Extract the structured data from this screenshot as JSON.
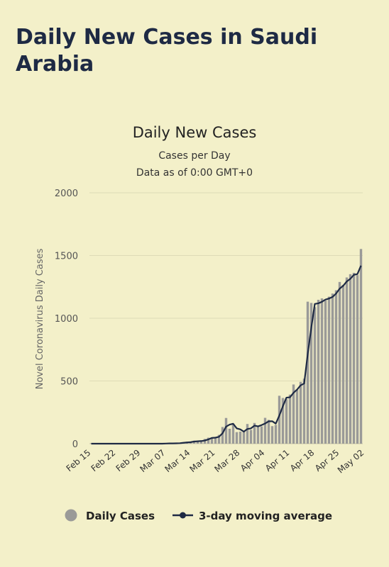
{
  "header": {
    "title": "Daily New Cases in Saudi Arabia"
  },
  "chart_data": {
    "type": "bar",
    "title": "Daily New Cases",
    "subtitle": "Cases per Day",
    "subtitle2": "Data as of 0:00 GMT+0",
    "xlabel": "",
    "ylabel": "Novel Coronavirus Daily Cases",
    "ylim": [
      0,
      2000
    ],
    "yticks": [
      0,
      500,
      1000,
      1500,
      2000
    ],
    "grid": true,
    "legend_position": "bottom",
    "xtick_labels": [
      "Feb 15",
      "Feb 22",
      "Feb 29",
      "Mar 07",
      "Mar 14",
      "Mar 21",
      "Mar 28",
      "Apr 04",
      "Apr 11",
      "Apr 18",
      "Apr 25",
      "May 02"
    ],
    "start_label": "Feb 15",
    "bar_color": "#9a9a98",
    "line_color": "#1e2a44",
    "series": [
      {
        "name": "Daily Cases",
        "kind": "bar",
        "values": [
          0,
          0,
          0,
          0,
          0,
          0,
          0,
          0,
          0,
          0,
          0,
          0,
          0,
          0,
          0,
          0,
          1,
          0,
          0,
          0,
          0,
          2,
          3,
          2,
          5,
          6,
          10,
          15,
          11,
          24,
          21,
          17,
          38,
          48,
          51,
          45,
          70,
          133,
          205,
          119,
          154,
          92,
          96,
          99,
          157,
          110,
          165,
          140,
          138,
          206,
          190,
          140,
          150,
          382,
          364,
          355,
          391,
          472,
          429,
          493,
          518,
          1132,
          1122,
          1088,
          1147,
          1158,
          1141,
          1172,
          1197,
          1223,
          1289,
          1266,
          1325,
          1351,
          1362,
          1344,
          1552
        ]
      },
      {
        "name": "3-day moving average",
        "kind": "line",
        "values": [
          0,
          0,
          0,
          0,
          0,
          0,
          0,
          0,
          0,
          0,
          0,
          0,
          0,
          0,
          0,
          0,
          0,
          0,
          0,
          0,
          0,
          1,
          2,
          2,
          3,
          4,
          7,
          10,
          12,
          17,
          19,
          21,
          25,
          34,
          46,
          48,
          55,
          83,
          136,
          152,
          159,
          122,
          114,
          96,
          117,
          122,
          144,
          138,
          148,
          161,
          178,
          179,
          160,
          224,
          299,
          367,
          370,
          406,
          431,
          465,
          480,
          714,
          924,
          1114,
          1119,
          1131,
          1149,
          1157,
          1170,
          1197,
          1236,
          1259,
          1293,
          1314,
          1346,
          1352,
          1419
        ]
      }
    ]
  }
}
